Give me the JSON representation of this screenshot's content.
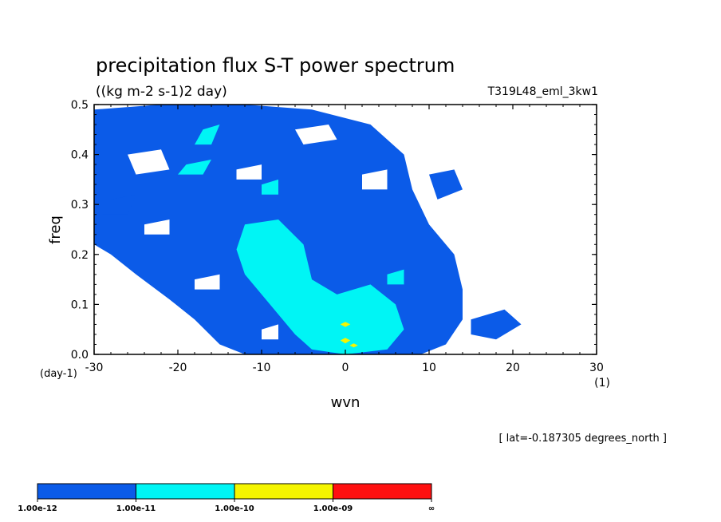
{
  "chart_data": {
    "type": "heatmap",
    "title": "precipitation flux S-T power spectrum",
    "units": "((kg m-2 s-1)2 day)",
    "run_label": "T319L48_eml_3kw1",
    "xlabel": "wvn",
    "x_unit": "(1)",
    "ylabel": "freq",
    "y_unit": "(day-1)",
    "xlim": [
      -30,
      30
    ],
    "ylim": [
      0.0,
      0.5
    ],
    "x_ticks": [
      "-30",
      "-20",
      "-10",
      "0",
      "10",
      "20",
      "30"
    ],
    "y_ticks": [
      "0.0",
      "0.1",
      "0.2",
      "0.3",
      "0.4",
      "0.5"
    ],
    "annotation": "[ lat=-0.187305 degrees_north ]",
    "contour_levels": [
      {
        "from": "1.00e-12",
        "to": "1.00e-11",
        "color": "#0b5be8"
      },
      {
        "from": "1.00e-11",
        "to": "1.00e-10",
        "color": "#00f5f5"
      },
      {
        "from": "1.00e-10",
        "to": "1.00e-09",
        "color": "#f5f500"
      },
      {
        "from": "1.00e-09",
        "to": "∞",
        "color": "#ff1010"
      }
    ],
    "colorbar_labels": [
      "1.00e-12",
      "1.00e-11",
      "1.00e-10",
      "1.00e-09",
      "∞"
    ],
    "regions": [
      {
        "level": 0,
        "polygon": [
          [
            -30,
            0.49
          ],
          [
            -22,
            0.5
          ],
          [
            -12,
            0.5
          ],
          [
            -4,
            0.49
          ],
          [
            3,
            0.46
          ],
          [
            7,
            0.4
          ],
          [
            8,
            0.33
          ],
          [
            10,
            0.26
          ],
          [
            13,
            0.2
          ],
          [
            14,
            0.13
          ],
          [
            14,
            0.07
          ],
          [
            12,
            0.02
          ],
          [
            9,
            0.0
          ],
          [
            -12,
            0.0
          ],
          [
            -15,
            0.02
          ],
          [
            -18,
            0.07
          ],
          [
            -21,
            0.11
          ],
          [
            -25,
            0.16
          ],
          [
            -28,
            0.2
          ],
          [
            -30,
            0.22
          ]
        ]
      },
      {
        "level": 0,
        "polygon": [
          [
            10,
            0.36
          ],
          [
            13,
            0.37
          ],
          [
            14,
            0.33
          ],
          [
            11,
            0.31
          ]
        ]
      },
      {
        "level": 0,
        "polygon": [
          [
            15,
            0.07
          ],
          [
            19,
            0.09
          ],
          [
            21,
            0.06
          ],
          [
            18,
            0.03
          ],
          [
            15,
            0.04
          ]
        ]
      },
      {
        "level": 0,
        "polygon": [
          [
            -28,
            0.31
          ],
          [
            -25,
            0.32
          ],
          [
            -26,
            0.28
          ],
          [
            -29,
            0.28
          ]
        ]
      },
      {
        "level": 1,
        "polygon": [
          [
            -12,
            0.26
          ],
          [
            -8,
            0.27
          ],
          [
            -5,
            0.22
          ],
          [
            -4,
            0.15
          ],
          [
            -1,
            0.12
          ],
          [
            3,
            0.14
          ],
          [
            6,
            0.1
          ],
          [
            7,
            0.05
          ],
          [
            5,
            0.01
          ],
          [
            0,
            0.0
          ],
          [
            -4,
            0.01
          ],
          [
            -6,
            0.04
          ],
          [
            -9,
            0.1
          ],
          [
            -12,
            0.16
          ],
          [
            -13,
            0.21
          ]
        ]
      },
      {
        "level": 1,
        "polygon": [
          [
            -17,
            0.45
          ],
          [
            -15,
            0.46
          ],
          [
            -16,
            0.42
          ],
          [
            -18,
            0.42
          ]
        ]
      },
      {
        "level": 1,
        "polygon": [
          [
            -19,
            0.38
          ],
          [
            -16,
            0.39
          ],
          [
            -17,
            0.36
          ],
          [
            -20,
            0.36
          ]
        ]
      },
      {
        "level": 1,
        "polygon": [
          [
            -10,
            0.34
          ],
          [
            -8,
            0.35
          ],
          [
            -8,
            0.32
          ],
          [
            -10,
            0.32
          ]
        ]
      },
      {
        "level": 1,
        "polygon": [
          [
            5,
            0.16
          ],
          [
            7,
            0.17
          ],
          [
            7,
            0.14
          ],
          [
            5,
            0.14
          ]
        ]
      },
      {
        "level": 2,
        "polygon": [
          [
            0,
            0.065
          ],
          [
            0.6,
            0.06
          ],
          [
            0,
            0.055
          ],
          [
            -0.6,
            0.06
          ]
        ]
      },
      {
        "level": 2,
        "polygon": [
          [
            0,
            0.033
          ],
          [
            0.6,
            0.028
          ],
          [
            0,
            0.022
          ],
          [
            -0.6,
            0.028
          ]
        ]
      },
      {
        "level": 2,
        "polygon": [
          [
            1,
            0.022
          ],
          [
            1.5,
            0.018
          ],
          [
            1,
            0.014
          ],
          [
            0.5,
            0.018
          ]
        ]
      }
    ],
    "holes": [
      {
        "polygon": [
          [
            -26,
            0.4
          ],
          [
            -22,
            0.41
          ],
          [
            -21,
            0.37
          ],
          [
            -25,
            0.36
          ]
        ]
      },
      {
        "polygon": [
          [
            -13,
            0.37
          ],
          [
            -10,
            0.38
          ],
          [
            -10,
            0.35
          ],
          [
            -13,
            0.35
          ]
        ]
      },
      {
        "polygon": [
          [
            -6,
            0.45
          ],
          [
            -2,
            0.46
          ],
          [
            -1,
            0.43
          ],
          [
            -5,
            0.42
          ]
        ]
      },
      {
        "polygon": [
          [
            -24,
            0.26
          ],
          [
            -21,
            0.27
          ],
          [
            -21,
            0.24
          ],
          [
            -24,
            0.24
          ]
        ]
      },
      {
        "polygon": [
          [
            -18,
            0.15
          ],
          [
            -15,
            0.16
          ],
          [
            -15,
            0.13
          ],
          [
            -18,
            0.13
          ]
        ]
      },
      {
        "polygon": [
          [
            -10,
            0.05
          ],
          [
            -8,
            0.06
          ],
          [
            -8,
            0.03
          ],
          [
            -10,
            0.03
          ]
        ]
      },
      {
        "polygon": [
          [
            2,
            0.36
          ],
          [
            5,
            0.37
          ],
          [
            5,
            0.33
          ],
          [
            2,
            0.33
          ]
        ]
      }
    ]
  }
}
